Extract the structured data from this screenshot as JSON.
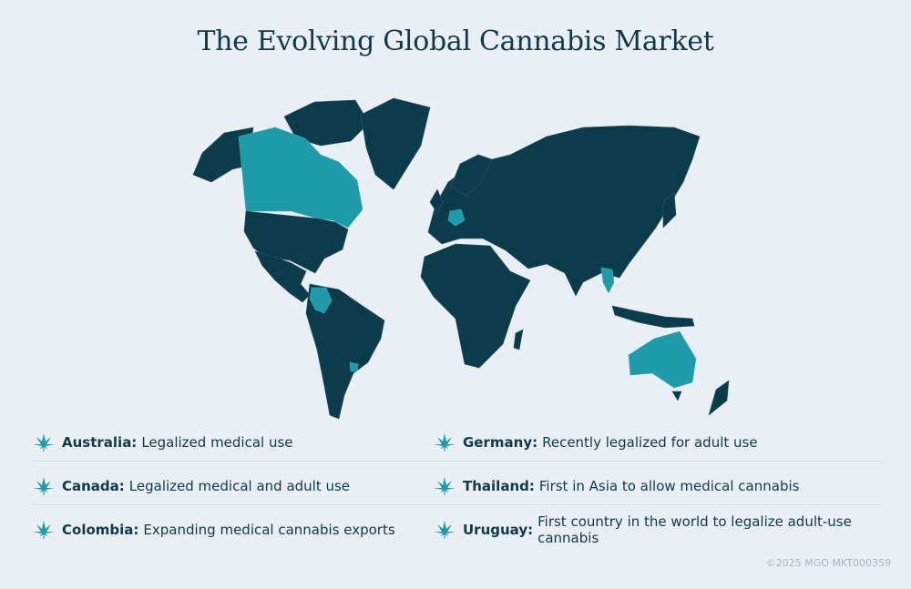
{
  "title": "The Evolving Global Cannabis Market",
  "colors": {
    "background": "#e9eff5",
    "land": "#0c3b4b",
    "highlight": "#1e9aa9",
    "text": "#0f3a49"
  },
  "map": {
    "highlighted_countries": [
      "Canada",
      "Colombia",
      "Uruguay",
      "Germany",
      "Thailand",
      "Australia"
    ]
  },
  "legend": [
    {
      "icon": "cannabis-leaf-icon",
      "country": "Australia:",
      "text": "Legalized medical use"
    },
    {
      "icon": "cannabis-leaf-icon",
      "country": "Germany:",
      "text": "Recently legalized for adult use"
    },
    {
      "icon": "cannabis-leaf-icon",
      "country": "Canada:",
      "text": "Legalized medical and adult use"
    },
    {
      "icon": "cannabis-leaf-icon",
      "country": "Thailand:",
      "text": "First in Asia to allow medical cannabis"
    },
    {
      "icon": "cannabis-leaf-icon",
      "country": "Colombia:",
      "text": "Expanding medical cannabis exports"
    },
    {
      "icon": "cannabis-leaf-icon",
      "country": "Uruguay:",
      "text": "First country in the world to legalize adult-use cannabis"
    }
  ],
  "footer": "©2025 MGO  MKT000359"
}
